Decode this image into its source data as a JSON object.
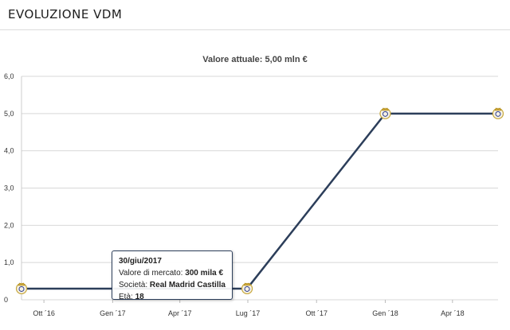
{
  "header": {
    "title": "EVOLUZIONE VDM"
  },
  "chart_data": {
    "type": "line",
    "title": "Valore attuale: 5,00 mln €",
    "xlabel": "",
    "ylabel": "",
    "ylim": [
      0,
      6
    ],
    "y_ticks": [
      "0",
      "1,0",
      "2,0",
      "3,0",
      "4,0",
      "5,0",
      "6,0"
    ],
    "x_ticks": [
      "Ott ´16",
      "Gen ´17",
      "Apr ´17",
      "Lug ´17",
      "Ott ´17",
      "Gen ´18",
      "Apr ´18"
    ],
    "x_tick_dates": [
      "2016-10-01",
      "2017-01-01",
      "2017-04-01",
      "2017-07-01",
      "2017-10-01",
      "2018-01-01",
      "2018-04-01"
    ],
    "x_range": [
      "2016-09-01",
      "2018-06-01"
    ],
    "grid": true,
    "line_color": "#2c3e5a",
    "series": [
      {
        "points": [
          {
            "x": "2016-09-01",
            "y": 0.3
          },
          {
            "x": "2017-06-30",
            "y": 0.3
          },
          {
            "x": "2018-01-01",
            "y": 5.0
          },
          {
            "x": "2018-06-01",
            "y": 5.0
          }
        ]
      }
    ]
  },
  "tooltip": {
    "date": "30/giu/2017",
    "value_label": "Valore di mercato:",
    "value": "300 mila €",
    "club_label": "Società:",
    "club": "Real Madrid Castilla",
    "age_label": "Età:",
    "age": "18"
  }
}
